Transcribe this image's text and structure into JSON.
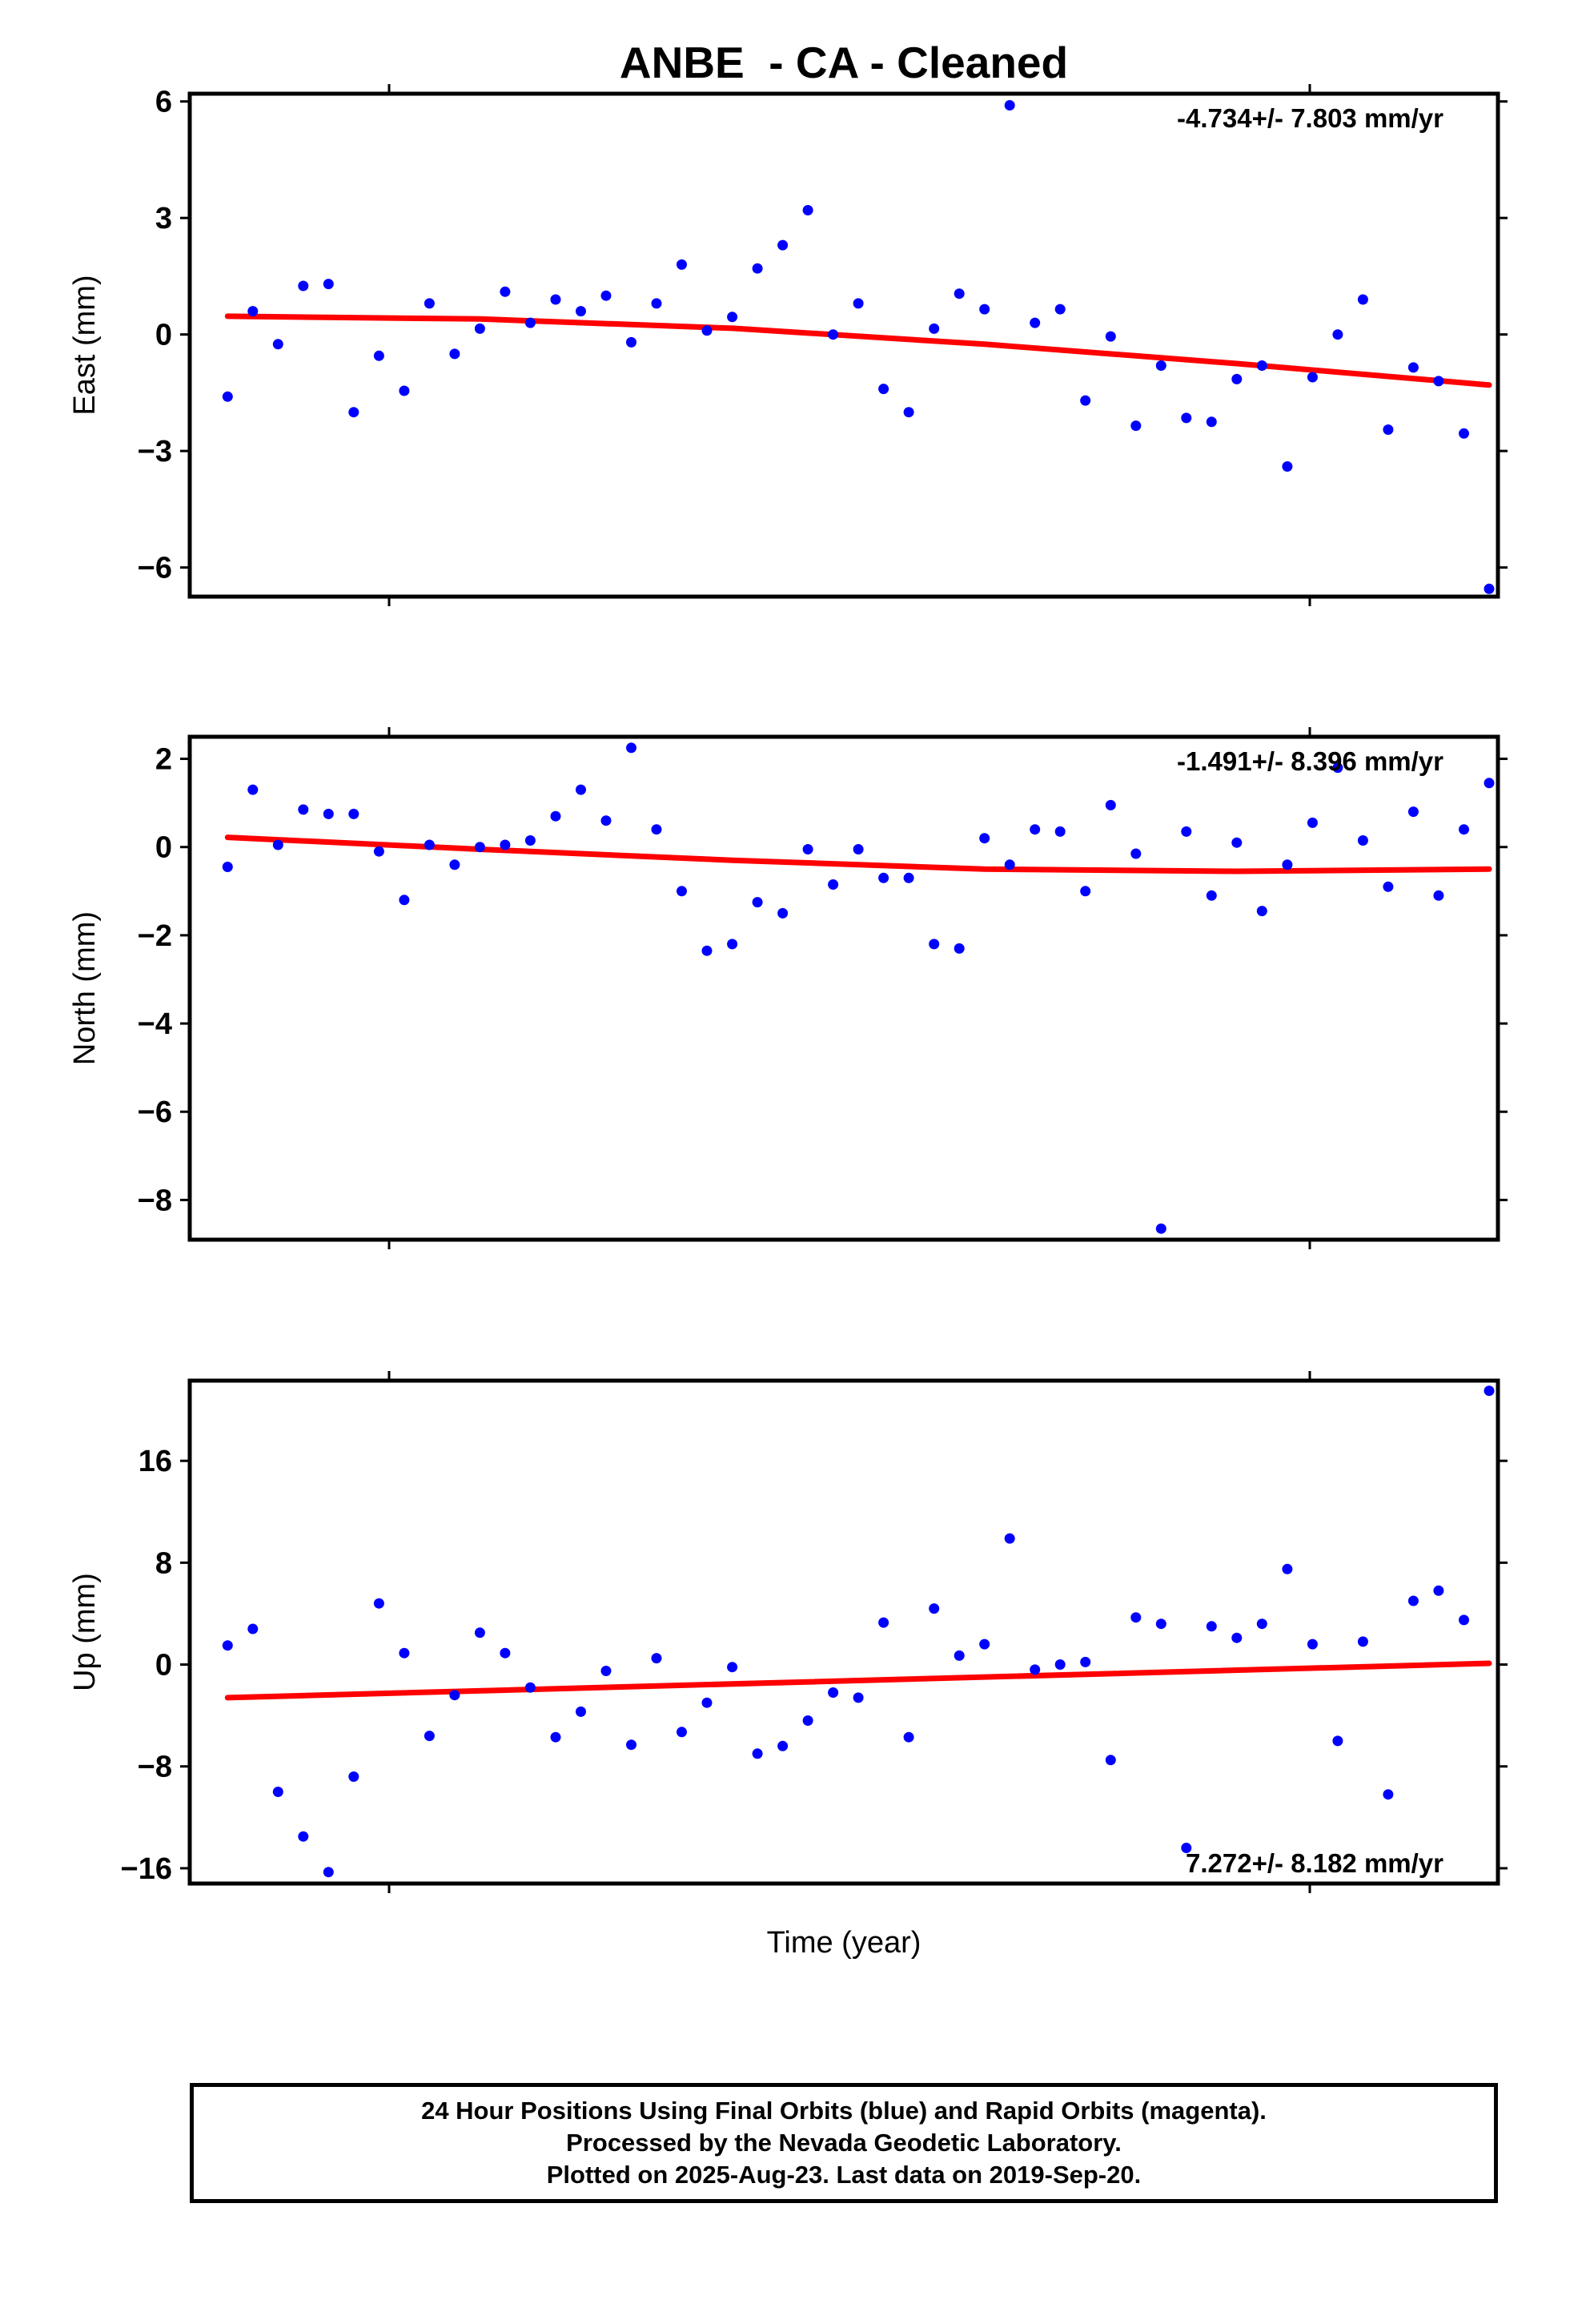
{
  "title": "ANBE  - CA - Cleaned",
  "xlabel": "Time (year)",
  "colors": {
    "points": "#0000ff",
    "trend": "#ff0000",
    "frame": "#000000"
  },
  "footer": {
    "line1": "24 Hour Positions Using Final Orbits (blue) and Rapid Orbits (magenta).",
    "line2": "Processed by the Nevada Geodetic Laboratory.",
    "line3": "Plotted on 2025-Aug-23. Last data on 2019-Sep-20."
  },
  "chart_data": [
    {
      "type": "scatter",
      "ylabel": "East (mm)",
      "rate": "-4.734+/- 7.803 mm/yr",
      "rate_position": "top-right",
      "yticks": [
        6,
        3,
        0,
        -3,
        -6
      ],
      "ylim": [
        -6.75,
        6.2
      ],
      "xlim": [
        -0.03,
        1.007
      ],
      "x": [
        0.0,
        0.02,
        0.04,
        0.06,
        0.08,
        0.1,
        0.12,
        0.14,
        0.16,
        0.18,
        0.2,
        0.22,
        0.24,
        0.26,
        0.28,
        0.3,
        0.32,
        0.34,
        0.36,
        0.38,
        0.4,
        0.42,
        0.44,
        0.46,
        0.48,
        0.5,
        0.52,
        0.54,
        0.56,
        0.58,
        0.6,
        0.62,
        0.64,
        0.66,
        0.68,
        0.7,
        0.72,
        0.74,
        0.76,
        0.78,
        0.8,
        0.82,
        0.84,
        0.86,
        0.88,
        0.9,
        0.92,
        0.94,
        0.96,
        0.98,
        1.0
      ],
      "values": [
        -1.6,
        0.6,
        -0.25,
        1.25,
        1.3,
        -2.0,
        -0.55,
        -1.45,
        0.8,
        -0.5,
        0.15,
        1.1,
        0.3,
        0.9,
        0.6,
        1.0,
        -0.2,
        0.8,
        1.8,
        0.1,
        0.45,
        1.7,
        2.3,
        3.2,
        0.0,
        0.8,
        -1.4,
        -2.0,
        0.15,
        1.05,
        0.65,
        5.9,
        0.3,
        0.65,
        -1.7,
        -0.05,
        -2.35,
        -0.8,
        -2.15,
        -2.25,
        -1.15,
        -0.8,
        -3.4,
        -1.1,
        0.0,
        0.9,
        -2.45,
        -0.85,
        -1.2,
        -2.55,
        -6.55
      ],
      "trend": [
        [
          0.0,
          0.47
        ],
        [
          0.2,
          0.4
        ],
        [
          0.4,
          0.16
        ],
        [
          0.6,
          -0.25
        ],
        [
          0.8,
          -0.75
        ],
        [
          1.0,
          -1.3
        ]
      ]
    },
    {
      "type": "scatter",
      "ylabel": "North (mm)",
      "rate": "-1.491+/- 8.396 mm/yr",
      "rate_position": "top-right",
      "yticks": [
        2,
        0,
        -2,
        -4,
        -6,
        -8
      ],
      "ylim": [
        -8.9,
        2.5
      ],
      "xlim": [
        -0.03,
        1.007
      ],
      "x": [
        0.0,
        0.02,
        0.04,
        0.06,
        0.08,
        0.1,
        0.12,
        0.14,
        0.16,
        0.18,
        0.2,
        0.22,
        0.24,
        0.26,
        0.28,
        0.3,
        0.32,
        0.34,
        0.36,
        0.38,
        0.4,
        0.42,
        0.44,
        0.46,
        0.48,
        0.5,
        0.52,
        0.54,
        0.56,
        0.58,
        0.6,
        0.62,
        0.64,
        0.66,
        0.68,
        0.7,
        0.72,
        0.74,
        0.76,
        0.78,
        0.8,
        0.82,
        0.84,
        0.86,
        0.88,
        0.9,
        0.92,
        0.94,
        0.96,
        0.98,
        1.0
      ],
      "values": [
        -0.45,
        1.3,
        0.05,
        0.85,
        0.75,
        0.75,
        -0.1,
        -1.2,
        0.05,
        -0.4,
        0.0,
        0.05,
        0.15,
        0.7,
        1.3,
        0.6,
        2.25,
        0.4,
        -1.0,
        -2.35,
        -2.2,
        -1.25,
        -1.5,
        -0.05,
        -0.85,
        -0.05,
        -0.7,
        -0.7,
        -2.2,
        -2.3,
        0.2,
        -0.4,
        0.4,
        0.35,
        -1.0,
        0.95,
        -0.15,
        -8.65,
        0.35,
        -1.1,
        0.1,
        -1.45,
        -0.4,
        0.55,
        1.8,
        0.15,
        -0.9,
        0.8,
        -1.1,
        0.4,
        1.45
      ],
      "trend": [
        [
          0.0,
          0.22
        ],
        [
          0.2,
          -0.05
        ],
        [
          0.4,
          -0.3
        ],
        [
          0.6,
          -0.5
        ],
        [
          0.8,
          -0.55
        ],
        [
          1.0,
          -0.5
        ]
      ]
    },
    {
      "type": "scatter",
      "ylabel": "Up (mm)",
      "rate": "7.272+/- 8.182 mm/yr",
      "rate_position": "bottom-right",
      "yticks": [
        16,
        8,
        0,
        -8,
        -16
      ],
      "ylim": [
        -17.2,
        22.3
      ],
      "xlim": [
        -0.03,
        1.007
      ],
      "x": [
        0.0,
        0.02,
        0.04,
        0.06,
        0.08,
        0.1,
        0.12,
        0.14,
        0.16,
        0.18,
        0.2,
        0.22,
        0.24,
        0.26,
        0.28,
        0.3,
        0.32,
        0.34,
        0.36,
        0.38,
        0.4,
        0.42,
        0.44,
        0.46,
        0.48,
        0.5,
        0.52,
        0.54,
        0.56,
        0.58,
        0.6,
        0.62,
        0.64,
        0.66,
        0.68,
        0.7,
        0.72,
        0.74,
        0.76,
        0.78,
        0.8,
        0.82,
        0.84,
        0.86,
        0.88,
        0.9,
        0.92,
        0.94,
        0.96,
        0.98,
        1.0
      ],
      "values": [
        1.5,
        2.8,
        -10.0,
        -13.5,
        -16.3,
        -8.8,
        4.8,
        0.9,
        -5.6,
        -2.4,
        2.5,
        0.9,
        -1.8,
        -5.7,
        -3.7,
        -0.5,
        -6.3,
        0.5,
        -5.3,
        -3.0,
        -0.2,
        -7.0,
        -6.4,
        -4.4,
        -2.2,
        -2.6,
        3.3,
        -5.7,
        4.4,
        0.7,
        1.6,
        9.9,
        -0.4,
        0.0,
        0.2,
        -7.5,
        3.7,
        3.2,
        -14.4,
        3.0,
        2.1,
        3.2,
        7.5,
        1.6,
        -6.0,
        1.8,
        -10.2,
        5.0,
        5.8,
        3.5,
        21.5
      ],
      "trend": [
        [
          0.0,
          -2.6
        ],
        [
          1.0,
          0.1
        ]
      ]
    }
  ]
}
